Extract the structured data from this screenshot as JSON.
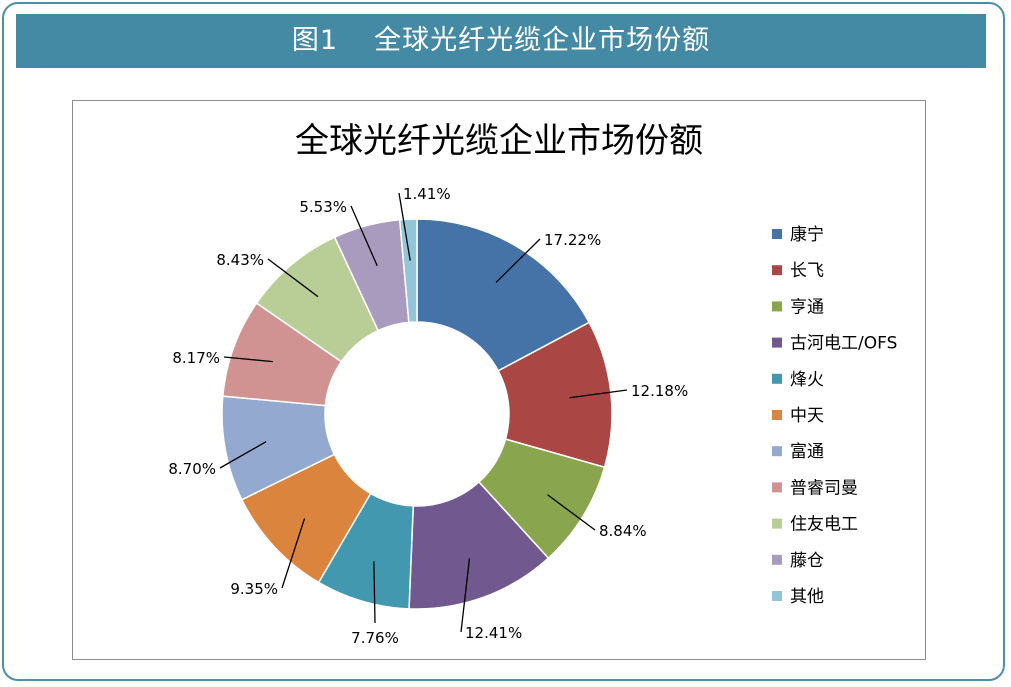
{
  "banner": {
    "label": "图1",
    "title": "全球光纤光缆企业市场份额"
  },
  "colors": {
    "banner_bg": "#458aa5",
    "frame_border": "#4d8fa8",
    "leader_line": "#000000"
  },
  "chart_data": {
    "type": "pie",
    "donut": true,
    "title": "全球光纤光缆企业市场份额",
    "legend_position": "right",
    "unit": "%",
    "slices": [
      {
        "name": "康宁",
        "value": 17.22,
        "label": "17.22%",
        "color": "#4572a7"
      },
      {
        "name": "长飞",
        "value": 12.18,
        "label": "12.18%",
        "color": "#aa4643"
      },
      {
        "name": "亨通",
        "value": 8.84,
        "label": "8.84%",
        "color": "#89a54e"
      },
      {
        "name": "古河电工/OFS",
        "value": 12.41,
        "label": "12.41%",
        "color": "#71588f"
      },
      {
        "name": "烽火",
        "value": 7.76,
        "label": "7.76%",
        "color": "#4198af"
      },
      {
        "name": "中天",
        "value": 9.35,
        "label": "9.35%",
        "color": "#db843d"
      },
      {
        "name": "富通",
        "value": 8.7,
        "label": "8.70%",
        "color": "#93a9cf"
      },
      {
        "name": "普睿司曼",
        "value": 8.17,
        "label": "8.17%",
        "color": "#d19392"
      },
      {
        "name": "住友电工",
        "value": 8.43,
        "label": "8.43%",
        "color": "#b9cd96"
      },
      {
        "name": "藤仓",
        "value": 5.53,
        "label": "5.53%",
        "color": "#a99bbd"
      },
      {
        "name": "其他",
        "value": 1.41,
        "label": "1.41%",
        "color": "#92c5d7"
      }
    ]
  }
}
